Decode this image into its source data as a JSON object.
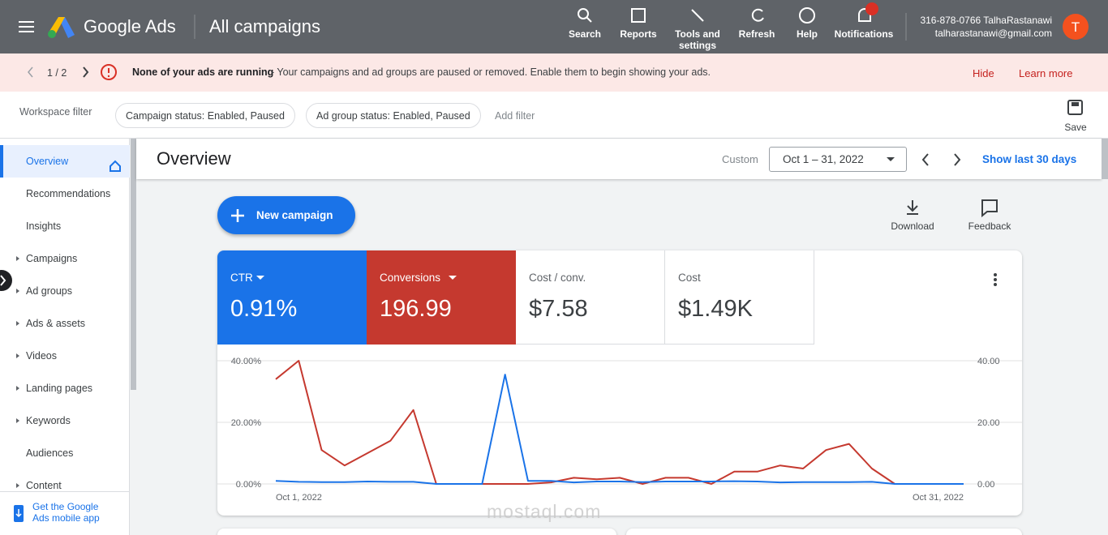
{
  "header": {
    "brand": "Google Ads",
    "page_title": "All campaigns",
    "nav": [
      "Search",
      "Reports",
      "Tools and settings",
      "Refresh",
      "Help",
      "Notifications"
    ],
    "account_line": "316-878-0766 TalhaRastanawi",
    "email": "talharastanawi@gmail.com",
    "avatar": "T"
  },
  "alert": {
    "pager": "1 / 2",
    "headline": "None of your ads are running",
    "message": "- Your campaigns and ad groups are paused or removed. Enable them to begin showing your ads.",
    "actions": [
      "Hide",
      "Learn more"
    ]
  },
  "filter_bar": {
    "label": "Workspace filter",
    "chips": [
      "Campaign status: Enabled, Paused",
      "Ad group status: Enabled, Paused"
    ],
    "add": "Add filter",
    "save": "Save"
  },
  "sidebar": {
    "items": [
      "Overview",
      "Recommendations",
      "Insights",
      "Campaigns",
      "Ad groups",
      "Ads & assets",
      "Videos",
      "Landing pages",
      "Keywords",
      "Audiences",
      "Content"
    ],
    "footer": [
      "Get the Google",
      "Ads mobile app"
    ]
  },
  "overview": {
    "title": "Overview",
    "date_label": "Custom",
    "date_range": "Oct 1 – 31, 2022",
    "show_last": "Show last 30 days",
    "new_campaign": "New campaign",
    "download": "Download",
    "feedback": "Feedback"
  },
  "metrics": [
    {
      "value": "0.91%"
    },
    {
      "value": "196.99"
    },
    {
      "label": "Cost / conv.",
      "value": "$7.58"
    },
    {
      "label": "Cost",
      "value": "$1.49K"
    }
  ],
  "watermark": "mostaql.com",
  "chart_data": {
    "type": "line",
    "categories": [
      "Oct 1, 2022",
      null,
      null,
      null,
      null,
      null,
      null,
      null,
      null,
      null,
      null,
      null,
      null,
      null,
      null,
      null,
      null,
      null,
      null,
      null,
      null,
      null,
      null,
      null,
      null,
      null,
      null,
      null,
      null,
      null,
      "Oct 31, 2022"
    ],
    "series": [
      {
        "name": "CTR",
        "color": "#1a73e8",
        "values": [
          1,
          0.7,
          0.6,
          0.6,
          0.8,
          0.7,
          0.7,
          0,
          0,
          0,
          35.5,
          1,
          1,
          0.5,
          0.8,
          0.8,
          0.6,
          0.8,
          0.8,
          0.8,
          0.9,
          0.8,
          0.5,
          0.6,
          0.6,
          0.6,
          0.7,
          0,
          0,
          0,
          0
        ]
      },
      {
        "name": "Conversions",
        "color": "#c5392f",
        "axis": "y2",
        "values": [
          34,
          40,
          11,
          6,
          10,
          14,
          24,
          0,
          0,
          0,
          0,
          0,
          0.5,
          2,
          1.5,
          2,
          0,
          2,
          2,
          0,
          4,
          4,
          6,
          5,
          11,
          13,
          5,
          0,
          0,
          0,
          0
        ]
      }
    ],
    "ylim": [
      0,
      40
    ],
    "yticks": [
      {
        "value": 0,
        "label": "0.00%"
      },
      {
        "value": 20,
        "label": "20.00%"
      },
      {
        "value": 40,
        "label": "40.00%"
      }
    ],
    "y2lim": [
      0,
      40
    ],
    "y2ticks": [
      {
        "value": 0,
        "label": "0.00"
      },
      {
        "value": 20,
        "label": "20.00"
      },
      {
        "value": 40,
        "label": "40.00"
      }
    ],
    "grid": true
  }
}
